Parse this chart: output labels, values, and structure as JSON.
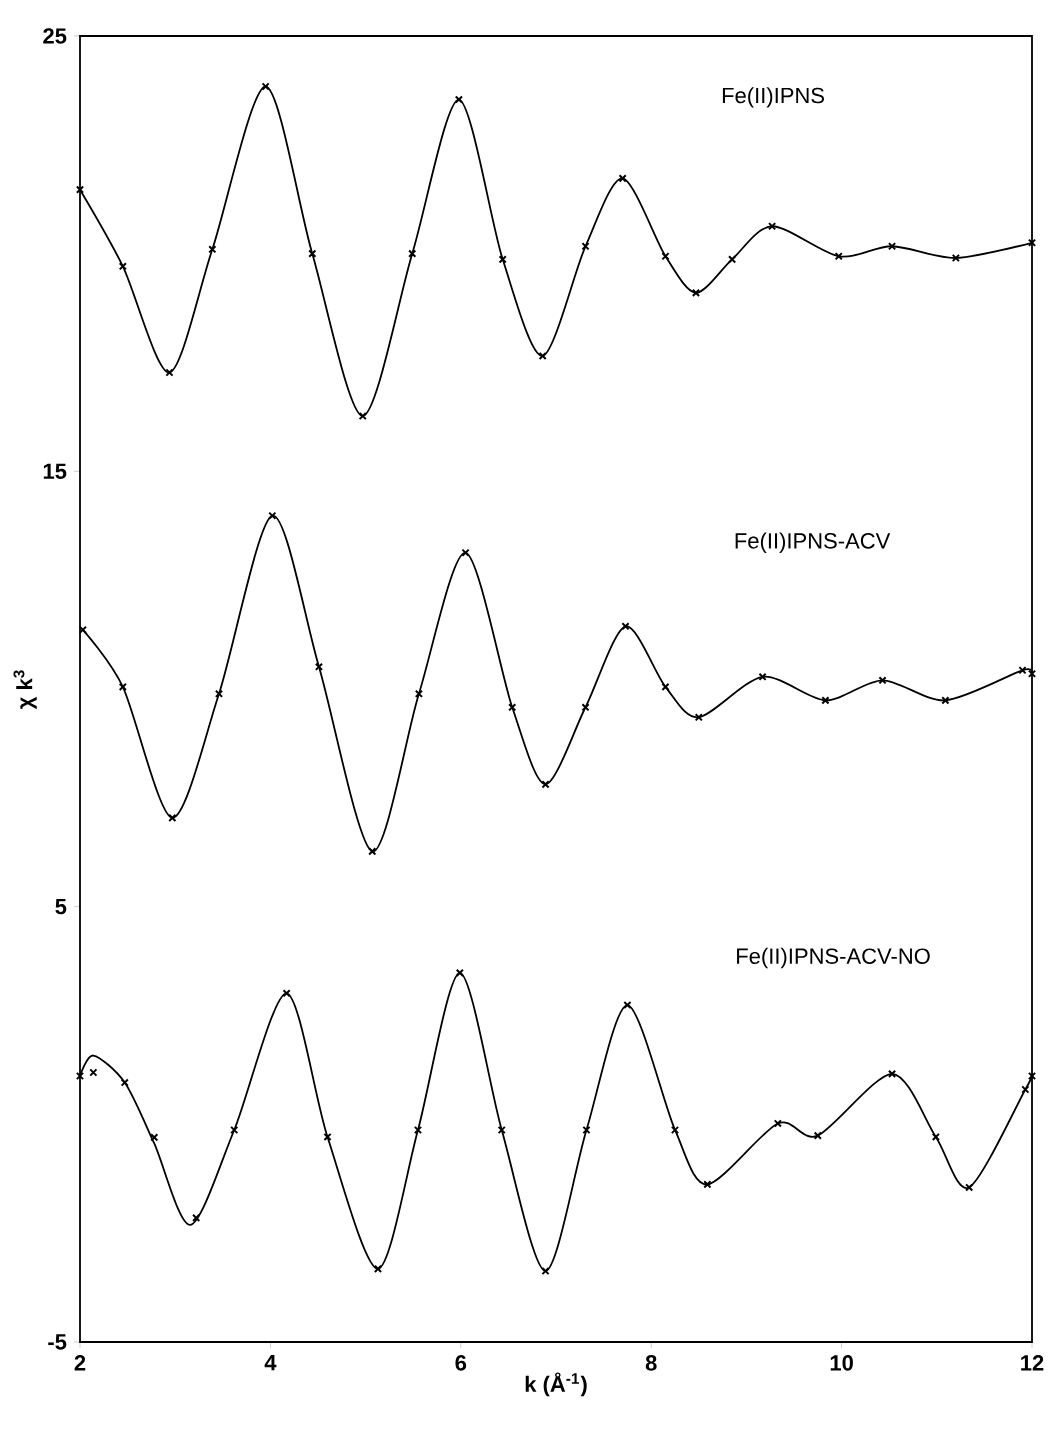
{
  "chart_data": {
    "type": "line",
    "xlabel": "k  (Å$^{-1}$)",
    "ylabel": "χ k$^{3}$",
    "xlim": [
      2,
      12
    ],
    "ylim": [
      -5,
      25
    ],
    "xticks": [
      2,
      4,
      6,
      8,
      10,
      12
    ],
    "yticks": [
      -5,
      5,
      15,
      25
    ],
    "annotations": [
      "Fe(II)IPNS",
      "Fe(II)IPNS-ACV",
      "Fe(II)IPNS-ACV-NO"
    ],
    "series": [
      {
        "color": "#000000",
        "marker": "none",
        "x": [
          2.0,
          2.45,
          2.94,
          3.39,
          3.95,
          4.44,
          4.97,
          5.49,
          5.98,
          6.44,
          6.86,
          7.31,
          7.7,
          8.15,
          8.47,
          8.85,
          9.27,
          9.97,
          10.53,
          11.2,
          12.0
        ],
        "values": [
          21.47,
          19.71,
          17.27,
          20.1,
          23.84,
          20.0,
          16.27,
          20.0,
          23.54,
          19.87,
          17.65,
          20.17,
          21.73,
          19.94,
          19.1,
          19.87,
          20.63,
          19.94,
          20.17,
          19.9,
          20.25
        ]
      },
      {
        "type": "scatter",
        "color": "#000000",
        "marker": "cross",
        "x": [
          2.0,
          2.45,
          2.94,
          3.39,
          3.95,
          4.44,
          4.97,
          5.49,
          5.98,
          6.44,
          6.86,
          7.31,
          7.7,
          8.15,
          8.47,
          8.85,
          9.27,
          9.97,
          10.53,
          11.2,
          12.0
        ],
        "values": [
          21.47,
          19.71,
          17.27,
          20.1,
          23.84,
          20.0,
          16.27,
          20.0,
          23.54,
          19.87,
          17.65,
          20.17,
          21.73,
          19.94,
          19.1,
          19.87,
          20.63,
          19.94,
          20.17,
          19.9,
          20.25
        ]
      },
      {
        "color": "#000000",
        "marker": "none",
        "x": [
          2.03,
          2.45,
          2.97,
          3.46,
          4.02,
          4.51,
          5.07,
          5.56,
          6.05,
          6.54,
          6.89,
          7.31,
          7.73,
          8.15,
          8.5,
          9.17,
          9.83,
          10.43,
          11.09,
          11.9,
          12.0
        ],
        "values": [
          11.36,
          10.05,
          7.04,
          9.89,
          13.98,
          10.51,
          6.27,
          9.89,
          13.13,
          9.58,
          7.81,
          9.58,
          11.44,
          10.05,
          9.35,
          10.28,
          9.74,
          10.2,
          9.74,
          10.43,
          10.35
        ]
      },
      {
        "type": "scatter",
        "color": "#000000",
        "marker": "cross",
        "x": [
          2.03,
          2.45,
          2.97,
          3.46,
          4.02,
          4.51,
          5.07,
          5.56,
          6.05,
          6.54,
          6.89,
          7.31,
          7.73,
          8.15,
          8.5,
          9.17,
          9.83,
          10.43,
          11.09,
          11.9,
          12.0
        ],
        "values": [
          11.36,
          10.05,
          7.04,
          9.89,
          13.98,
          10.51,
          6.27,
          9.89,
          13.13,
          9.58,
          7.81,
          9.58,
          11.44,
          10.05,
          9.35,
          10.28,
          9.74,
          10.2,
          9.74,
          10.43,
          10.35
        ]
      },
      {
        "color": "#000000",
        "marker": "none",
        "x": [
          2.0,
          2.14,
          2.47,
          2.78,
          3.16,
          3.62,
          4.17,
          4.6,
          5.13,
          5.55,
          5.99,
          6.43,
          6.89,
          7.32,
          7.75,
          8.25,
          8.59,
          9.33,
          9.75,
          10.53,
          10.99,
          11.34,
          11.93,
          12.0
        ],
        "values": [
          1.11,
          1.58,
          0.96,
          -0.44,
          -2.31,
          -0.13,
          3.01,
          -0.29,
          -3.32,
          -0.13,
          3.48,
          -0.13,
          -3.37,
          -0.13,
          2.74,
          -0.13,
          -1.38,
          0.02,
          -0.26,
          1.16,
          -0.29,
          -1.45,
          0.8,
          1.11
        ]
      },
      {
        "type": "scatter",
        "color": "#000000",
        "marker": "cross",
        "x": [
          2.0,
          2.14,
          2.47,
          2.78,
          3.22,
          3.62,
          4.17,
          4.6,
          5.13,
          5.55,
          5.99,
          6.43,
          6.89,
          7.32,
          7.75,
          8.25,
          8.59,
          9.33,
          9.75,
          10.53,
          10.99,
          11.34,
          11.93,
          12.0
        ],
        "values": [
          1.11,
          1.19,
          0.96,
          -0.3,
          -2.15,
          -0.13,
          3.01,
          -0.29,
          -3.32,
          -0.13,
          3.48,
          -0.13,
          -3.37,
          -0.13,
          2.74,
          -0.13,
          -1.38,
          0.02,
          -0.26,
          1.16,
          -0.29,
          -1.45,
          0.8,
          1.11
        ]
      }
    ]
  }
}
